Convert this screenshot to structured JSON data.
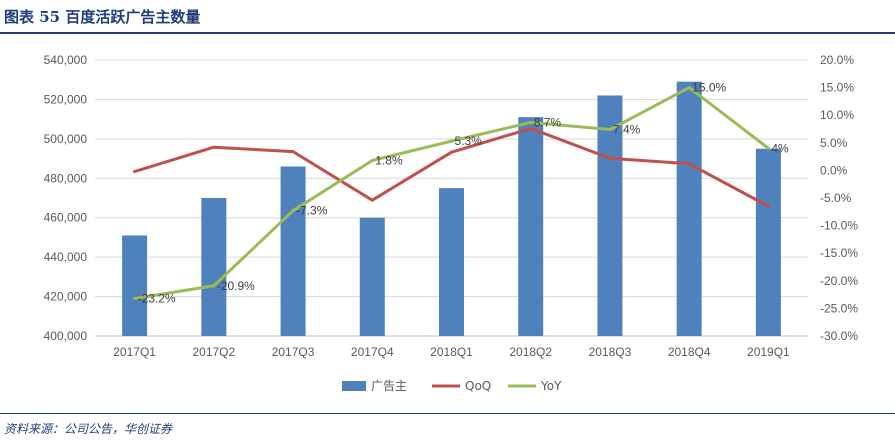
{
  "header": {
    "title": "图表 55  百度活跃广告主数量"
  },
  "footer": {
    "source": "资料来源：公司公告，华创证券"
  },
  "chart_data": {
    "type": "bar",
    "title": "百度活跃广告主数量",
    "categories": [
      "2017Q1",
      "2017Q2",
      "2017Q3",
      "2017Q4",
      "2018Q1",
      "2018Q2",
      "2018Q3",
      "2018Q4",
      "2019Q1"
    ],
    "series": [
      {
        "name": "广告主",
        "type": "bar",
        "axis": "left",
        "color": "#4f81bd",
        "values": [
          451000,
          470000,
          486000,
          460000,
          475000,
          511000,
          522000,
          529000,
          495000
        ]
      },
      {
        "name": "QoQ",
        "type": "line",
        "axis": "right",
        "color": "#c0504d",
        "values": [
          -0.2,
          4.2,
          3.4,
          -5.4,
          3.3,
          7.6,
          2.2,
          1.2,
          -6.5
        ]
      },
      {
        "name": "YoY",
        "type": "line",
        "axis": "right",
        "color": "#9bbb59",
        "values": [
          -23.2,
          -20.9,
          -7.3,
          1.8,
          5.3,
          8.7,
          7.4,
          15.0,
          4.0
        ],
        "labels": [
          "-23.2%",
          "-20.9%",
          "-7.3%",
          "1.8%",
          "5.3%",
          "8.7%",
          "7.4%",
          "15.0%",
          "4%"
        ]
      }
    ],
    "left_axis": {
      "min": 400000,
      "max": 540000,
      "step": 20000,
      "tick_labels": [
        "400,000",
        "420,000",
        "440,000",
        "460,000",
        "480,000",
        "500,000",
        "520,000",
        "540,000"
      ]
    },
    "right_axis": {
      "min": -30,
      "max": 20,
      "step": 5,
      "tick_labels": [
        "-30.0%",
        "-25.0%",
        "-20.0%",
        "-15.0%",
        "-10.0%",
        "-5.0%",
        "0.0%",
        "5.0%",
        "10.0%",
        "15.0%",
        "20.0%"
      ]
    },
    "grid": true,
    "legend": {
      "position": "bottom",
      "entries": [
        "广告主",
        "QoQ",
        "YoY"
      ]
    }
  }
}
